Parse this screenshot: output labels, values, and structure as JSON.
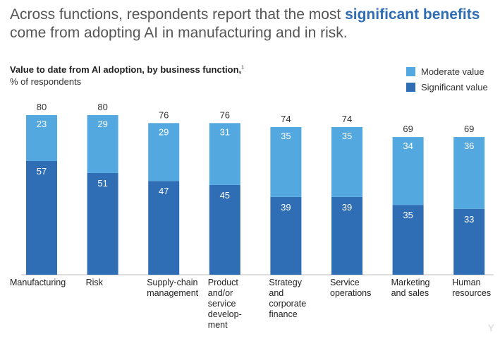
{
  "headline": {
    "part1": "Across functions, respondents report that the most ",
    "highlight": "significant benefits",
    "part2": " come from adopting AI in manufacturing and in risk."
  },
  "chart_data": {
    "type": "bar",
    "stacked": true,
    "title": "Value to date from AI adoption, by business function,",
    "title_footnote": "1",
    "subtitle": "% of respondents",
    "categories": [
      "Manufacturing",
      "Risk",
      "Supply-chain management",
      "Product and/or service develop- ment",
      "Strategy and corporate finance",
      "Service operations",
      "Marketing and sales",
      "Human resources"
    ],
    "series": [
      {
        "name": "Significant value",
        "color": "#2f6db5",
        "values": [
          57,
          51,
          47,
          45,
          39,
          39,
          35,
          33
        ]
      },
      {
        "name": "Moderate value",
        "color": "#52a8df",
        "values": [
          23,
          29,
          29,
          31,
          35,
          35,
          34,
          36
        ]
      }
    ],
    "totals": [
      80,
      80,
      76,
      76,
      74,
      74,
      69,
      69
    ],
    "ylim": [
      0,
      100
    ],
    "grid": false,
    "legend_position": "top-right",
    "legend_order": [
      "Moderate value",
      "Significant value"
    ]
  },
  "watermark": "Y"
}
